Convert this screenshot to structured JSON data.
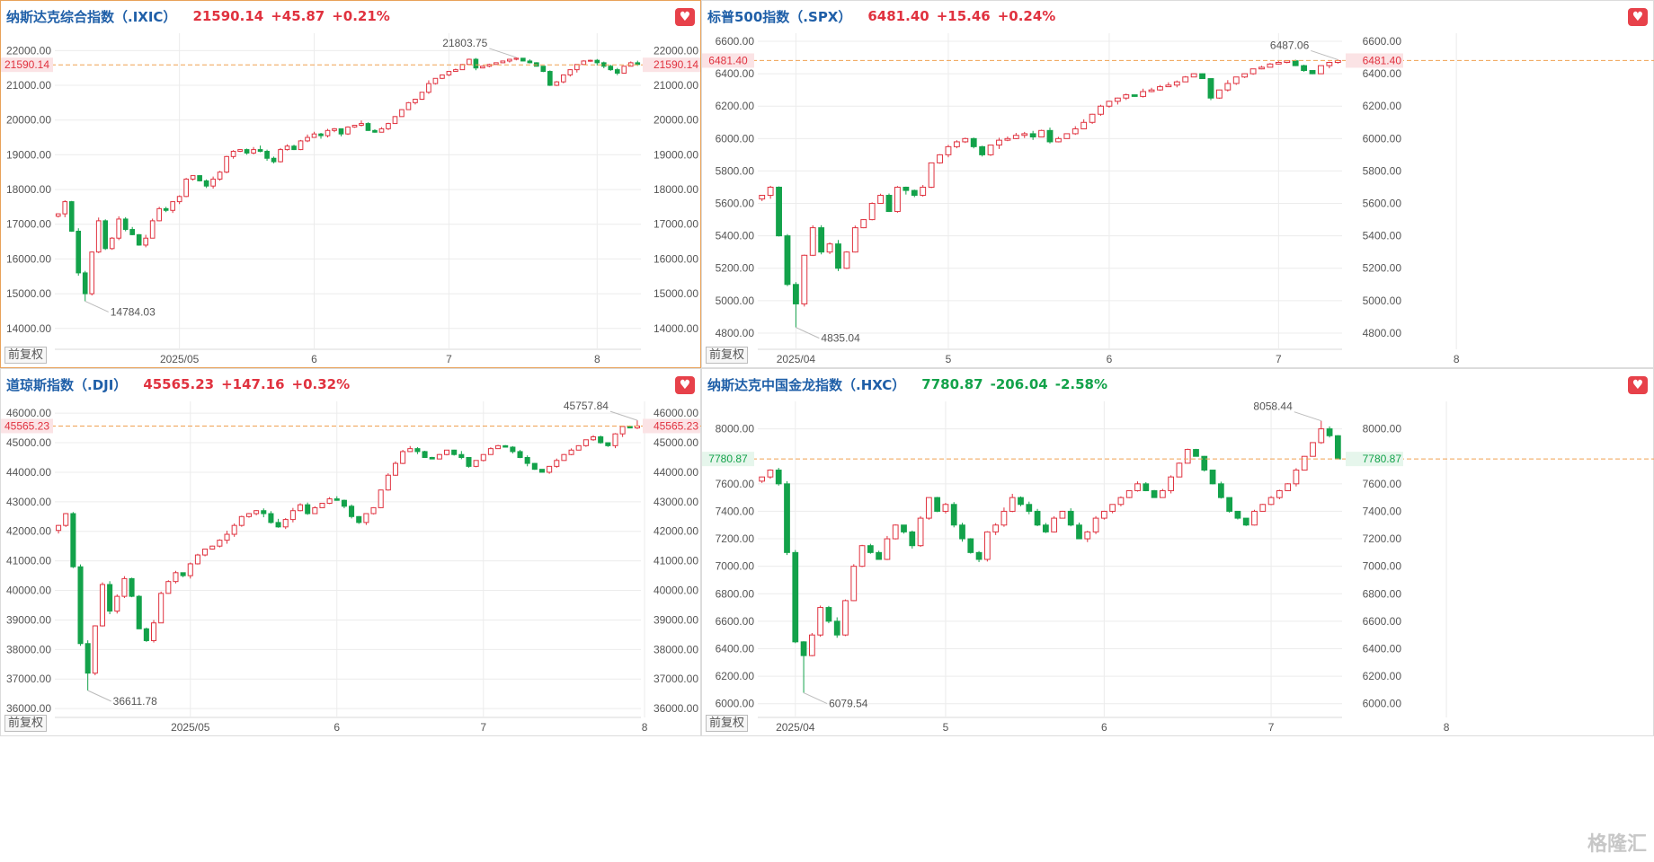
{
  "colors": {
    "up": "#e0323f",
    "down": "#13a24a",
    "grid": "#ececec",
    "axis": "#555555",
    "dash": "#f0a050",
    "name": "#1f5fa8"
  },
  "ui": {
    "adj_label": "前复权",
    "fav_icon": "heart-icon",
    "watermark": "格隆汇"
  },
  "panels": [
    {
      "name": "纳斯达克综合指数（.IXIC）",
      "last": "21590.14",
      "change": "+45.87",
      "pct": "+0.21%",
      "direction": "up",
      "y_ticks": [
        "22000.00",
        "21000.00",
        "20000.00",
        "19000.00",
        "18000.00",
        "17000.00",
        "16000.00",
        "15000.00",
        "14000.00"
      ],
      "x_ticks": [
        "2025/05",
        "6",
        "7",
        "8"
      ],
      "high_label": "21803.75",
      "low_label": "14784.03"
    },
    {
      "name": "标普500指数（.SPX）",
      "last": "6481.40",
      "change": "+15.46",
      "pct": "+0.24%",
      "direction": "up",
      "y_ticks": [
        "6600.00",
        "6400.00",
        "6200.00",
        "6000.00",
        "5800.00",
        "5600.00",
        "5400.00",
        "5200.00",
        "5000.00",
        "4800.00"
      ],
      "x_ticks": [
        "2025/04",
        "5",
        "6",
        "7",
        "8"
      ],
      "high_label": "6487.06",
      "low_label": "4835.04"
    },
    {
      "name": "道琼斯指数（.DJI）",
      "last": "45565.23",
      "change": "+147.16",
      "pct": "+0.32%",
      "direction": "up",
      "y_ticks": [
        "46000.00",
        "45000.00",
        "44000.00",
        "43000.00",
        "42000.00",
        "41000.00",
        "40000.00",
        "39000.00",
        "38000.00",
        "37000.00",
        "36000.00"
      ],
      "x_ticks": [
        "2025/05",
        "6",
        "7",
        "8"
      ],
      "high_label": "45757.84",
      "low_label": "36611.78"
    },
    {
      "name": "纳斯达克中国金龙指数（.HXC）",
      "last": "7780.87",
      "change": "-206.04",
      "pct": "-2.58%",
      "direction": "down",
      "y_ticks": [
        "8000.00",
        "7600.00",
        "7400.00",
        "7200.00",
        "7000.00",
        "6800.00",
        "6600.00",
        "6400.00",
        "6200.00",
        "6000.00"
      ],
      "x_ticks": [
        "2025/04",
        "5",
        "6",
        "7",
        "8"
      ],
      "high_label": "8058.44",
      "low_label": "6079.54"
    }
  ],
  "chart_data": [
    {
      "type": "candlestick",
      "title": "纳斯达克综合指数（.IXIC）",
      "ylim": [
        13400,
        22500
      ],
      "last": 21590.14,
      "high": 21803.75,
      "low": 14784.03,
      "x_ticks": [
        {
          "label": "2025/05",
          "index": 18
        },
        {
          "label": "6",
          "index": 38
        },
        {
          "label": "7",
          "index": 58
        },
        {
          "label": "8",
          "index": 80
        }
      ],
      "close": [
        17300,
        17650,
        16800,
        15600,
        15000,
        16200,
        17100,
        16300,
        16600,
        17150,
        16850,
        16700,
        16400,
        16600,
        17100,
        17450,
        17400,
        17650,
        17800,
        18300,
        18400,
        18250,
        18100,
        18300,
        18500,
        18950,
        19100,
        19150,
        19050,
        19150,
        19100,
        18900,
        18800,
        19150,
        19250,
        19150,
        19400,
        19500,
        19600,
        19550,
        19700,
        19750,
        19600,
        19800,
        19850,
        19900,
        19700,
        19650,
        19750,
        19900,
        20100,
        20300,
        20500,
        20600,
        20800,
        21050,
        21200,
        21300,
        21400,
        21450,
        21600,
        21750,
        21500,
        21550,
        21600,
        21650,
        21700,
        21750,
        21780,
        21700,
        21650,
        21550,
        21400,
        21000,
        21100,
        21300,
        21450,
        21600,
        21700,
        21720,
        21650,
        21550,
        21450,
        21350,
        21550,
        21650,
        21600
      ]
    },
    {
      "type": "candlestick",
      "title": "标普500指数（.SPX）",
      "ylim": [
        4700,
        6650
      ],
      "last": 6481.4,
      "high": 6487.06,
      "low": 4835.04,
      "x_ticks": [
        {
          "label": "2025/04",
          "index": 4
        },
        {
          "label": "5",
          "index": 22
        },
        {
          "label": "6",
          "index": 41
        },
        {
          "label": "7",
          "index": 61
        },
        {
          "label": "8",
          "index": 82
        }
      ],
      "close": [
        5650,
        5700,
        5400,
        5100,
        4980,
        5280,
        5450,
        5300,
        5350,
        5200,
        5300,
        5450,
        5500,
        5600,
        5650,
        5550,
        5700,
        5680,
        5650,
        5700,
        5850,
        5900,
        5950,
        5980,
        6000,
        5950,
        5900,
        5960,
        5990,
        6000,
        6020,
        6030,
        6010,
        6050,
        5980,
        6000,
        6030,
        6060,
        6100,
        6150,
        6200,
        6230,
        6250,
        6270,
        6260,
        6290,
        6300,
        6320,
        6330,
        6350,
        6380,
        6400,
        6370,
        6250,
        6300,
        6340,
        6380,
        6400,
        6430,
        6440,
        6460,
        6470,
        6480,
        6450,
        6420,
        6400,
        6450,
        6470,
        6481
      ]
    },
    {
      "type": "candlestick",
      "title": "道琼斯指数（.DJI）",
      "ylim": [
        35700,
        46400
      ],
      "last": 45565.23,
      "high": 45757.84,
      "low": 36611.78,
      "x_ticks": [
        {
          "label": "2025/05",
          "index": 18
        },
        {
          "label": "6",
          "index": 38
        },
        {
          "label": "7",
          "index": 58
        },
        {
          "label": "8",
          "index": 80
        }
      ],
      "close": [
        42200,
        42600,
        40800,
        38200,
        37200,
        38800,
        40200,
        39300,
        39800,
        40400,
        39800,
        38700,
        38300,
        38900,
        39900,
        40300,
        40600,
        40500,
        40900,
        41200,
        41400,
        41500,
        41700,
        41900,
        42200,
        42500,
        42600,
        42700,
        42600,
        42300,
        42150,
        42400,
        42700,
        42900,
        42600,
        42800,
        42950,
        43100,
        43050,
        42850,
        42500,
        42300,
        42600,
        42800,
        43400,
        43900,
        44300,
        44700,
        44800,
        44700,
        44500,
        44450,
        44600,
        44750,
        44600,
        44500,
        44200,
        44400,
        44600,
        44800,
        44900,
        44850,
        44700,
        44500,
        44300,
        44100,
        44000,
        44200,
        44400,
        44600,
        44750,
        44900,
        45100,
        45200,
        45000,
        44900,
        45300,
        45550,
        45500,
        45565
      ]
    },
    {
      "type": "candlestick",
      "title": "纳斯达克中国金龙指数（.HXC）",
      "ylim": [
        5900,
        8200
      ],
      "last": 7780.87,
      "high": 8058.44,
      "low": 6079.54,
      "x_ticks": [
        {
          "label": "2025/04",
          "index": 4
        },
        {
          "label": "5",
          "index": 22
        },
        {
          "label": "6",
          "index": 41
        },
        {
          "label": "7",
          "index": 61
        },
        {
          "label": "8",
          "index": 82
        }
      ],
      "close": [
        7650,
        7700,
        7600,
        7100,
        6450,
        6350,
        6500,
        6700,
        6600,
        6500,
        6750,
        7000,
        7150,
        7100,
        7050,
        7200,
        7300,
        7250,
        7150,
        7350,
        7500,
        7400,
        7450,
        7300,
        7200,
        7100,
        7050,
        7250,
        7300,
        7400,
        7500,
        7450,
        7400,
        7300,
        7250,
        7350,
        7400,
        7300,
        7200,
        7250,
        7350,
        7400,
        7450,
        7500,
        7550,
        7600,
        7550,
        7500,
        7550,
        7650,
        7750,
        7850,
        7800,
        7700,
        7600,
        7500,
        7400,
        7350,
        7300,
        7400,
        7450,
        7500,
        7550,
        7600,
        7700,
        7800,
        7900,
        8000,
        7950,
        7781
      ]
    }
  ]
}
